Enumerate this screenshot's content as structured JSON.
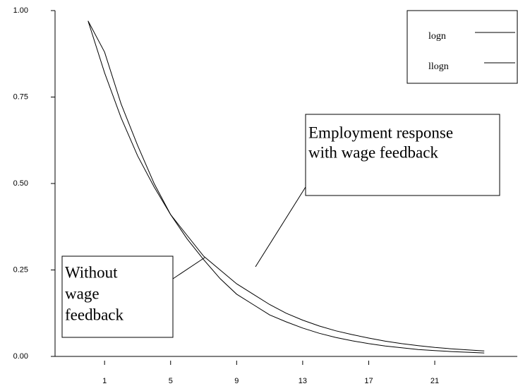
{
  "chart_data": {
    "type": "line",
    "x": [
      0,
      1,
      2,
      3,
      4,
      5,
      6,
      7,
      8,
      9,
      10,
      11,
      12,
      13,
      14,
      15,
      16,
      17,
      18,
      19,
      20,
      21,
      22,
      23,
      24
    ],
    "series": [
      {
        "name": "logn",
        "color": "#000000",
        "values": [
          0.97,
          0.82,
          0.69,
          0.58,
          0.49,
          0.41,
          0.35,
          0.29,
          0.25,
          0.21,
          0.18,
          0.15,
          0.125,
          0.105,
          0.088,
          0.074,
          0.063,
          0.053,
          0.044,
          0.037,
          0.031,
          0.026,
          0.022,
          0.019,
          0.016
        ]
      },
      {
        "name": "llogn",
        "color": "#000000",
        "values": [
          0.97,
          0.88,
          0.73,
          0.61,
          0.5,
          0.41,
          0.34,
          0.28,
          0.225,
          0.18,
          0.15,
          0.12,
          0.1,
          0.082,
          0.067,
          0.055,
          0.045,
          0.037,
          0.03,
          0.025,
          0.02,
          0.017,
          0.014,
          0.012,
          0.01
        ]
      }
    ],
    "xlim": [
      -2,
      26
    ],
    "xticks": [
      1,
      5,
      9,
      13,
      17,
      21
    ],
    "ylim": [
      0,
      1
    ],
    "yticks": [
      {
        "value": 0,
        "label": "0.00"
      },
      {
        "value": 0.25,
        "label": "0.25"
      },
      {
        "value": 0.5,
        "label": "0.50"
      },
      {
        "value": 0.75,
        "label": "0.75"
      },
      {
        "value": 1,
        "label": "1.00"
      }
    ],
    "grid": false,
    "legend": "upper right",
    "annotations": [
      {
        "lines": [
          "Employment response",
          "with wage feedback"
        ]
      },
      {
        "lines": [
          "Without",
          "wage",
          "feedback"
        ]
      }
    ]
  }
}
